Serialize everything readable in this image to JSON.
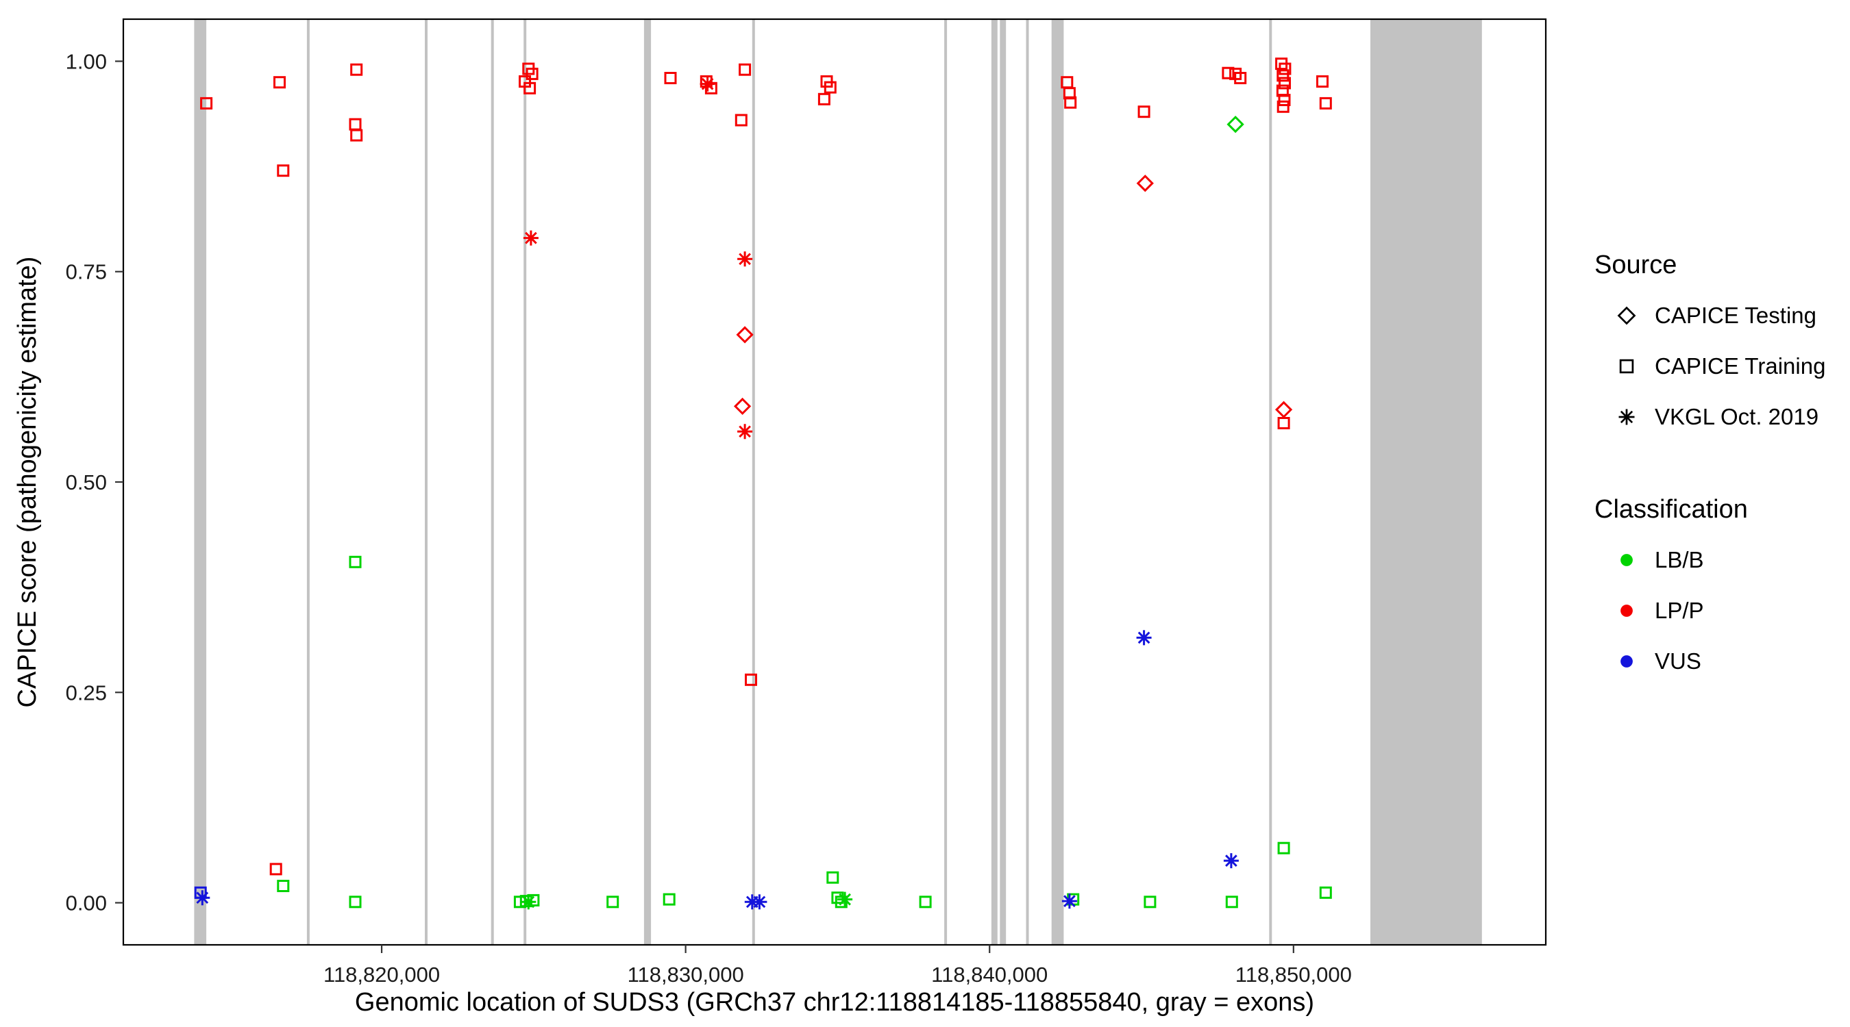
{
  "legend": {
    "source": {
      "title": "Source",
      "items": [
        {
          "label": "CAPICE Testing",
          "shape": "diamond"
        },
        {
          "label": "CAPICE Training",
          "shape": "square"
        },
        {
          "label": "VKGL Oct. 2019",
          "shape": "asterisk"
        }
      ]
    },
    "classification": {
      "title": "Classification",
      "items": [
        {
          "label": "LB/B",
          "color": "#00D300"
        },
        {
          "label": "LP/P",
          "color": "#F40000"
        },
        {
          "label": "VUS",
          "color": "#1414DC"
        }
      ]
    }
  },
  "chart_data": {
    "type": "scatter",
    "title": "",
    "xlabel": "Genomic location of SUDS3 (GRCh37 chr12:118814185-118855840, gray = exons)",
    "ylabel": "CAPICE score (pathogenicity estimate)",
    "xlim": [
      118811500,
      118858300
    ],
    "ylim": [
      -0.05,
      1.05
    ],
    "grid": "off",
    "legend_position": "right",
    "x_ticks": [
      {
        "v": 118820000,
        "label": "118,820,000"
      },
      {
        "v": 118830000,
        "label": "118,830,000"
      },
      {
        "v": 118840000,
        "label": "118,840,000"
      },
      {
        "v": 118850000,
        "label": "118,850,000"
      }
    ],
    "y_ticks": [
      {
        "v": 0,
        "label": "0.00"
      },
      {
        "v": 0.25,
        "label": "0.25"
      },
      {
        "v": 0.5,
        "label": "0.50"
      },
      {
        "v": 0.75,
        "label": "0.75"
      },
      {
        "v": 1,
        "label": "1.00"
      }
    ],
    "exon_color": "#C2C2C2",
    "exons": [
      [
        118813830,
        118814230
      ],
      [
        118817540,
        118817630
      ],
      [
        118821420,
        118821510
      ],
      [
        118823600,
        118823690
      ],
      [
        118824670,
        118824760
      ],
      [
        118828630,
        118828860
      ],
      [
        118832190,
        118832280
      ],
      [
        118838510,
        118838600
      ],
      [
        118840060,
        118840260
      ],
      [
        118840340,
        118840540
      ],
      [
        118841200,
        118841290
      ],
      [
        118842040,
        118842440
      ],
      [
        118849200,
        118849290
      ],
      [
        118852530,
        118856200
      ]
    ],
    "classification_colors": {
      "LB/B": "#00D300",
      "LP/P": "#F40000",
      "VUS": "#1414DC"
    },
    "source_shapes": {
      "CAPICE Testing": "diamond",
      "CAPICE Training": "square",
      "VKGL Oct. 2019": "asterisk"
    },
    "series": [
      {
        "classification": "LP/P",
        "source": "CAPICE Training",
        "points": [
          [
            118814230,
            0.95
          ],
          [
            118816520,
            0.04
          ],
          [
            118816640,
            0.975
          ],
          [
            118816760,
            0.87
          ],
          [
            118819170,
            0.99
          ],
          [
            118819130,
            0.925
          ],
          [
            118819170,
            0.912
          ],
          [
            118824710,
            0.976
          ],
          [
            118824830,
            0.991
          ],
          [
            118824950,
            0.985
          ],
          [
            118824870,
            0.968
          ],
          [
            118829500,
            0.98
          ],
          [
            118830680,
            0.976
          ],
          [
            118830840,
            0.968
          ],
          [
            118831950,
            0.99
          ],
          [
            118831830,
            0.93
          ],
          [
            118832150,
            0.265
          ],
          [
            118834560,
            0.955
          ],
          [
            118834640,
            0.976
          ],
          [
            118834760,
            0.969
          ],
          [
            118842550,
            0.975
          ],
          [
            118842630,
            0.962
          ],
          [
            118842660,
            0.951
          ],
          [
            118845080,
            0.94
          ],
          [
            118847850,
            0.986
          ],
          [
            118848090,
            0.985
          ],
          [
            118848250,
            0.98
          ],
          [
            118849600,
            0.997
          ],
          [
            118849720,
            0.991
          ],
          [
            118849650,
            0.983
          ],
          [
            118849710,
            0.974
          ],
          [
            118849640,
            0.965
          ],
          [
            118849700,
            0.954
          ],
          [
            118849660,
            0.946
          ],
          [
            118849680,
            0.57
          ],
          [
            118850950,
            0.976
          ],
          [
            118851060,
            0.95
          ]
        ]
      },
      {
        "classification": "LP/P",
        "source": "CAPICE Testing",
        "points": [
          [
            118831950,
            0.675
          ],
          [
            118831870,
            0.59
          ],
          [
            118845120,
            0.855
          ],
          [
            118849680,
            0.586
          ]
        ]
      },
      {
        "classification": "LP/P",
        "source": "VKGL Oct. 2019",
        "points": [
          [
            118824910,
            0.79
          ],
          [
            118830720,
            0.973
          ],
          [
            118831950,
            0.765
          ],
          [
            118831950,
            0.56
          ]
        ]
      },
      {
        "classification": "LB/B",
        "source": "CAPICE Training",
        "points": [
          [
            118816760,
            0.02
          ],
          [
            118819130,
            0.405
          ],
          [
            118819130,
            0.001
          ],
          [
            118824550,
            0.001
          ],
          [
            118824750,
            0.002
          ],
          [
            118824990,
            0.003
          ],
          [
            118827600,
            0.001
          ],
          [
            118829460,
            0.004
          ],
          [
            118834840,
            0.03
          ],
          [
            118835000,
            0.006
          ],
          [
            118835120,
            0.001
          ],
          [
            118837890,
            0.001
          ],
          [
            118842750,
            0.004
          ],
          [
            118845280,
            0.001
          ],
          [
            118847970,
            0.001
          ],
          [
            118849680,
            0.065
          ],
          [
            118851060,
            0.012
          ]
        ]
      },
      {
        "classification": "LB/B",
        "source": "CAPICE Testing",
        "points": [
          [
            118848090,
            0.925
          ]
        ]
      },
      {
        "classification": "LB/B",
        "source": "VKGL Oct. 2019",
        "points": [
          [
            118824830,
            0.001
          ],
          [
            118835240,
            0.004
          ]
        ]
      },
      {
        "classification": "VUS",
        "source": "CAPICE Training",
        "points": [
          [
            118814040,
            0.012
          ]
        ]
      },
      {
        "classification": "VUS",
        "source": "VKGL Oct. 2019",
        "points": [
          [
            118814100,
            0.006
          ],
          [
            118832190,
            0.001
          ],
          [
            118832430,
            0.001
          ],
          [
            118842630,
            0.002
          ],
          [
            118845080,
            0.315
          ],
          [
            118847950,
            0.05
          ]
        ]
      }
    ]
  }
}
